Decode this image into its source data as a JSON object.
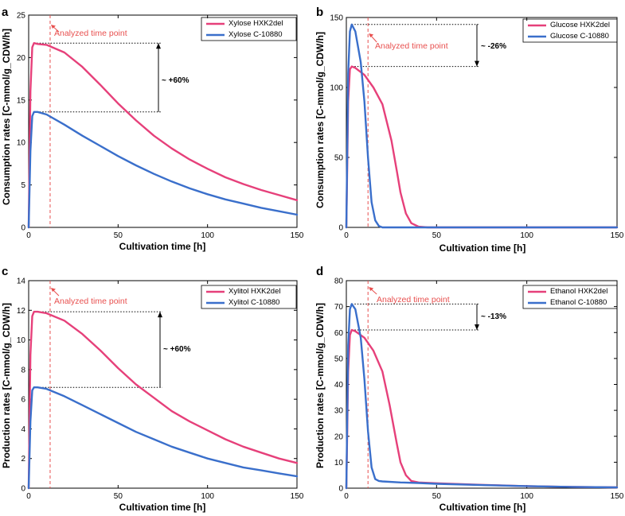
{
  "chart_data": [
    {
      "panel": "a",
      "type": "line",
      "xlabel": "Cultivation time [h]",
      "ylabel": "Consumption rates [C-mmol/g_CDW/h]",
      "xlim": [
        0,
        150
      ],
      "ylim": [
        0,
        25
      ],
      "xticks": [
        0,
        50,
        100,
        150
      ],
      "yticks": [
        0,
        5,
        10,
        15,
        20,
        25
      ],
      "series": [
        {
          "name": "Xylose HXK2del",
          "color": "#e6407a",
          "x": [
            0,
            1,
            2,
            3,
            5,
            10,
            20,
            30,
            40,
            50,
            60,
            70,
            80,
            90,
            100,
            110,
            120,
            130,
            140,
            150
          ],
          "y": [
            0,
            16,
            21.2,
            21.7,
            21.6,
            21.5,
            20.6,
            18.9,
            16.8,
            14.6,
            12.6,
            10.8,
            9.3,
            8.0,
            6.9,
            5.9,
            5.1,
            4.4,
            3.8,
            3.2
          ]
        },
        {
          "name": "Xylose C-10880",
          "color": "#3a6fcb",
          "x": [
            0,
            1,
            2,
            3,
            5,
            10,
            20,
            30,
            40,
            50,
            60,
            70,
            80,
            90,
            100,
            110,
            120,
            130,
            140,
            150
          ],
          "y": [
            0,
            9,
            13.1,
            13.6,
            13.6,
            13.3,
            12.1,
            10.8,
            9.6,
            8.4,
            7.3,
            6.3,
            5.4,
            4.6,
            3.9,
            3.3,
            2.8,
            2.3,
            1.9,
            1.5
          ]
        }
      ],
      "marker": {
        "x": 12,
        "label": "Analyzed time point"
      },
      "annotation": {
        "text": "~ +60%",
        "y_from": 13.6,
        "y_to": 21.7
      }
    },
    {
      "panel": "b",
      "type": "line",
      "xlabel": "Cultivation time [h]",
      "ylabel": "Consumption rates [C-mmol/g_CDW/h]",
      "xlim": [
        0,
        150
      ],
      "ylim": [
        0,
        150
      ],
      "xticks": [
        0,
        50,
        100,
        150
      ],
      "yticks": [
        0,
        50,
        100,
        150
      ],
      "series": [
        {
          "name": "Glucose HXK2del",
          "color": "#e6407a",
          "x": [
            0,
            1,
            2,
            3,
            5,
            10,
            15,
            20,
            25,
            28,
            30,
            33,
            36,
            40,
            45,
            150
          ],
          "y": [
            0,
            90,
            113,
            115,
            114,
            109,
            100,
            88,
            62,
            40,
            25,
            10,
            3,
            0.5,
            0,
            0
          ]
        },
        {
          "name": "Glucose C-10880",
          "color": "#3a6fcb",
          "x": [
            0,
            1,
            2,
            3,
            5,
            8,
            10,
            12,
            14,
            16,
            18,
            20,
            150
          ],
          "y": [
            0,
            110,
            140,
            145,
            140,
            118,
            90,
            50,
            18,
            5,
            1,
            0,
            0
          ]
        }
      ],
      "marker": {
        "x": 12,
        "label": "Analyzed time point"
      },
      "annotation": {
        "text": "~ -26%",
        "y_from": 145,
        "y_to": 115
      }
    },
    {
      "panel": "c",
      "type": "line",
      "xlabel": "Cultivation time [h]",
      "ylabel": "Production rates [C-mmol/g_CDW/h]",
      "xlim": [
        0,
        150
      ],
      "ylim": [
        0,
        14
      ],
      "xticks": [
        0,
        50,
        100,
        150
      ],
      "yticks": [
        0,
        2,
        4,
        6,
        8,
        10,
        12,
        14
      ],
      "series": [
        {
          "name": "Xylitol HXK2del",
          "color": "#e6407a",
          "x": [
            0,
            1,
            2,
            3,
            5,
            10,
            20,
            30,
            40,
            50,
            60,
            70,
            80,
            90,
            100,
            110,
            120,
            130,
            140,
            150
          ],
          "y": [
            0,
            9,
            11.6,
            11.9,
            11.9,
            11.8,
            11.3,
            10.4,
            9.3,
            8.1,
            7.0,
            6.1,
            5.2,
            4.5,
            3.9,
            3.3,
            2.8,
            2.4,
            2.0,
            1.7
          ]
        },
        {
          "name": "Xylitol C-10880",
          "color": "#3a6fcb",
          "x": [
            0,
            1,
            2,
            3,
            5,
            10,
            20,
            30,
            40,
            50,
            60,
            70,
            80,
            90,
            100,
            110,
            120,
            130,
            140,
            150
          ],
          "y": [
            0,
            4.5,
            6.6,
            6.8,
            6.8,
            6.7,
            6.2,
            5.6,
            5.0,
            4.4,
            3.8,
            3.3,
            2.8,
            2.4,
            2.0,
            1.7,
            1.4,
            1.2,
            1.0,
            0.8
          ]
        }
      ],
      "marker": {
        "x": 12,
        "label": "Analyzed time point"
      },
      "annotation": {
        "text": "~ +60%",
        "y_from": 6.8,
        "y_to": 11.9
      }
    },
    {
      "panel": "d",
      "type": "line",
      "xlabel": "Cultivation time [h]",
      "ylabel": "Production rates [C-mmol/g_CDW/h]",
      "xlim": [
        0,
        150
      ],
      "ylim": [
        0,
        80
      ],
      "xticks": [
        0,
        50,
        100,
        150
      ],
      "yticks": [
        0,
        10,
        20,
        30,
        40,
        50,
        60,
        70,
        80
      ],
      "series": [
        {
          "name": "Ethanol HXK2del",
          "color": "#e6407a",
          "x": [
            0,
            1,
            2,
            3,
            5,
            10,
            15,
            20,
            24,
            28,
            30,
            33,
            36,
            40,
            50,
            75,
            100,
            125,
            150
          ],
          "y": [
            0,
            45,
            59,
            61,
            60.5,
            58,
            53,
            45,
            32,
            17,
            10,
            5,
            2.8,
            2.2,
            1.9,
            1.3,
            0.8,
            0.5,
            0.3
          ]
        },
        {
          "name": "Ethanol C-10880",
          "color": "#3a6fcb",
          "x": [
            0,
            1,
            2,
            3,
            5,
            8,
            10,
            12,
            14,
            16,
            18,
            20,
            30,
            40,
            50,
            75,
            100,
            125,
            150
          ],
          "y": [
            0,
            55,
            69,
            71,
            69,
            58,
            42,
            22,
            8,
            3.5,
            2.8,
            2.6,
            2.2,
            2.0,
            1.7,
            1.2,
            0.8,
            0.5,
            0.3
          ]
        }
      ],
      "marker": {
        "x": 12,
        "label": "Analyzed time point"
      },
      "annotation": {
        "text": "~ -13%",
        "y_from": 71,
        "y_to": 61
      }
    }
  ],
  "panels": [
    {
      "letter": "a",
      "xlabel": "Cultivation time [h]",
      "ylabel": "Consumption rates [C-mmol/g_CDW/h]",
      "legend": [
        "Xylose HXK2del",
        "Xylose C-10880"
      ],
      "marker_label": "Analyzed time point",
      "annotation": "~ +60%"
    },
    {
      "letter": "b",
      "xlabel": "Cultivation time [h]",
      "ylabel": "Consumption rates [C-mmol/g_CDW/h]",
      "legend": [
        "Glucose HXK2del",
        "Glucose C-10880"
      ],
      "marker_label": "Analyzed time point",
      "annotation": "~ -26%"
    },
    {
      "letter": "c",
      "xlabel": "Cultivation time [h]",
      "ylabel": "Production rates [C-mmol/g_CDW/h]",
      "legend": [
        "Xylitol HXK2del",
        "Xylitol C-10880"
      ],
      "marker_label": "Analyzed time point",
      "annotation": "~ +60%"
    },
    {
      "letter": "d",
      "xlabel": "Cultivation time [h]",
      "ylabel": "Production rates [C-mmol/g_CDW/h]",
      "legend": [
        "Ethanol HXK2del",
        "Ethanol C-10880"
      ],
      "marker_label": "Analyzed time point",
      "annotation": "~ -13%"
    }
  ],
  "colors": {
    "hxk2del": "#e6407a",
    "c10880": "#3a6fcb",
    "marker": "#e8504f",
    "axis": "#000000"
  }
}
